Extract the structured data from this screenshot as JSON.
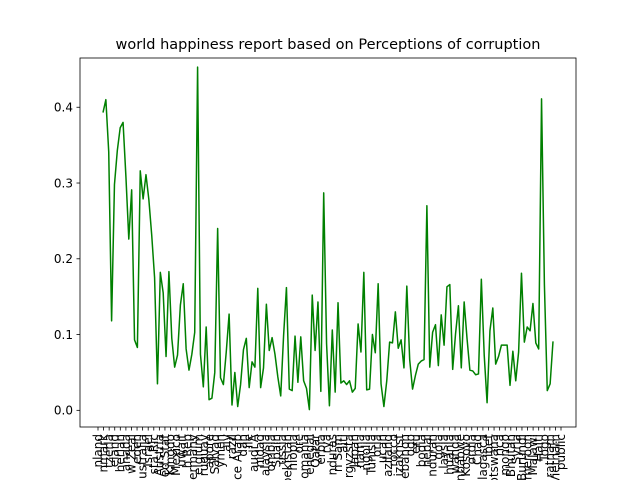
{
  "chart_data": {
    "type": "line",
    "title": "world happiness report based on Perceptions of corruption",
    "xlabel": "",
    "ylabel": "",
    "ylim": [
      -0.022,
      0.465
    ],
    "yticks": [
      0.0,
      0.1,
      0.2,
      0.3,
      0.4
    ],
    "ytick_labels": [
      "0.0",
      "0.1",
      "0.2",
      "0.3",
      "0.4"
    ],
    "grid": false,
    "legend": "none",
    "series": [
      {
        "color": "#008000",
        "values": [
          0.393,
          0.41,
          0.341,
          0.118,
          0.298,
          0.343,
          0.373,
          0.38,
          0.308,
          0.226,
          0.291,
          0.093,
          0.083,
          0.316,
          0.279,
          0.311,
          0.278,
          0.231,
          0.175,
          0.035,
          0.182,
          0.155,
          0.071,
          0.183,
          0.095,
          0.057,
          0.073,
          0.139,
          0.167,
          0.081,
          0.053,
          0.074,
          0.103,
          0.453,
          0.074,
          0.031,
          0.11,
          0.014,
          0.016,
          0.05,
          0.24,
          0.043,
          0.034,
          0.077,
          0.127,
          0.007,
          0.05,
          0.005,
          0.034,
          0.08,
          0.095,
          0.03,
          0.064,
          0.057,
          0.161,
          0.03,
          0.056,
          0.14,
          0.079,
          0.096,
          0.074,
          0.044,
          0.019,
          0.098,
          0.162,
          0.028,
          0.026,
          0.098,
          0.037,
          0.097,
          0.039,
          0.029,
          0.001,
          0.152,
          0.079,
          0.143,
          0.025,
          0.287,
          0.088,
          0.006,
          0.106,
          0.024,
          0.142,
          0.036,
          0.039,
          0.034,
          0.039,
          0.024,
          0.029,
          0.114,
          0.077,
          0.182,
          0.027,
          0.028,
          0.1,
          0.076,
          0.167,
          0.035,
          0.005,
          0.039,
          0.09,
          0.089,
          0.13,
          0.082,
          0.093,
          0.056,
          0.164,
          0.067,
          0.028,
          0.046,
          0.061,
          0.065,
          0.067,
          0.27,
          0.057,
          0.103,
          0.113,
          0.059,
          0.126,
          0.086,
          0.163,
          0.166,
          0.054,
          0.101,
          0.138,
          0.056,
          0.143,
          0.095,
          0.053,
          0.052,
          0.047,
          0.048,
          0.173,
          0.073,
          0.01,
          0.105,
          0.135,
          0.061,
          0.071,
          0.086,
          0.086,
          0.086,
          0.033,
          0.078,
          0.039,
          0.077,
          0.181,
          0.09,
          0.11,
          0.105,
          0.141,
          0.089,
          0.081,
          0.411,
          0.166,
          0.026,
          0.035,
          0.091
        ]
      }
    ],
    "x_tick_labels": [
      "nland",
      "nmark",
      "tzerla",
      "eland",
      "herlan",
      "anada",
      "w Zeal",
      "eden",
      "ustralia",
      "Israel",
      "sta Ric",
      "Austria",
      "ed Stat",
      "Kingdo",
      "Mexico",
      "uwait",
      "h Rep",
      "ermany",
      "elgium",
      "ruguay",
      "apore",
      "Salvad",
      "ymen",
      "aly",
      "razil",
      "ce Arab",
      "dan",
      "ile",
      "audi A",
      "nidad",
      "alaysia",
      "ombia",
      "Spain",
      "ussia",
      "bekistan",
      "hiopia",
      "ore",
      "omania",
      "enegal",
      "Qatar",
      "erbia",
      "rya",
      "nduras",
      "n Sam",
      "aiti",
      "rgyzsta",
      "Japan",
      "nama",
      "ngolia",
      "Tunisia",
      "oria",
      "ucan",
      "aziland",
      "rocco",
      "izakhst",
      "ebanon",
      "ogo",
      "eru",
      "bodia",
      "nepal",
      "nduran",
      "gola",
      "laysia",
      "huania",
      "wanda",
      "nbabwe",
      "Kosovo",
      "ordia",
      "Chad",
      "lagasca",
      "ibet",
      "otswana",
      "rica",
      "mongo",
      "Bhutan",
      "Syria",
      "Burundi",
      "ameroon",
      "Malawi",
      "Haiti",
      "Togo",
      "ratnam",
      "Vietnam",
      "public"
    ]
  }
}
